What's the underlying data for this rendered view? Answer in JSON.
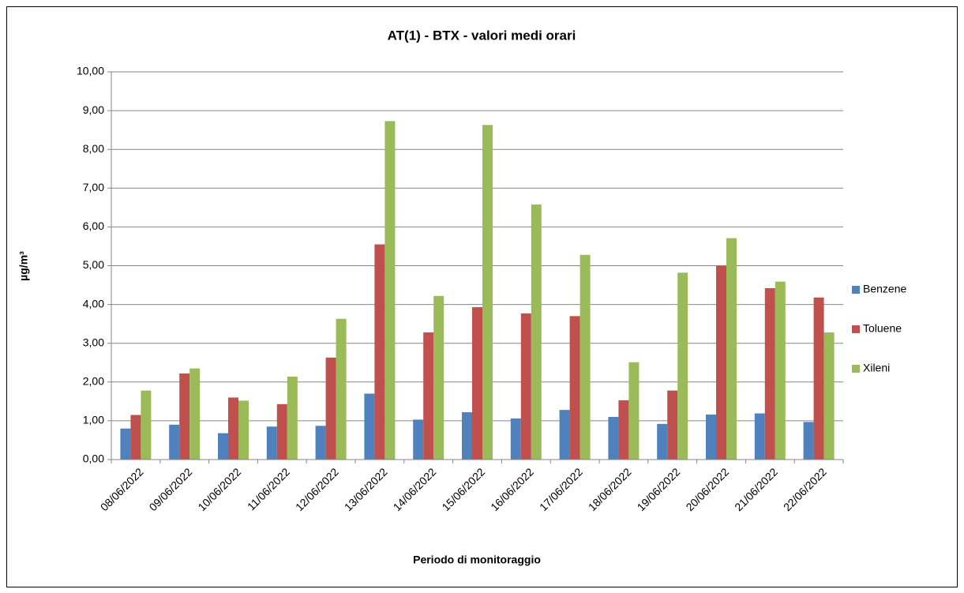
{
  "chart_data": {
    "type": "bar",
    "title": "AT(1) - BTX - valori medi orari",
    "x_label": "Periodo di monitoraggio",
    "y_label": "µg/m³",
    "categories": [
      "08/06/2022",
      "09/06/2022",
      "10/06/2022",
      "11/06/2022",
      "12/06/2022",
      "13/06/2022",
      "14/06/2022",
      "15/06/2022",
      "16/06/2022",
      "17/06/2022",
      "18/06/2022",
      "19/06/2022",
      "20/06/2022",
      "21/06/2022",
      "22/06/2022"
    ],
    "series": [
      {
        "name": "Benzene",
        "color": "#4f81bd",
        "values": [
          0.8,
          0.9,
          0.68,
          0.85,
          0.87,
          1.7,
          1.03,
          1.22,
          1.06,
          1.28,
          1.1,
          0.92,
          1.16,
          1.19,
          0.97
        ]
      },
      {
        "name": "Toluene",
        "color": "#c0504d",
        "values": [
          1.15,
          2.22,
          1.6,
          1.43,
          2.63,
          5.55,
          3.28,
          3.93,
          3.77,
          3.7,
          1.53,
          1.78,
          5.0,
          4.42,
          4.18
        ]
      },
      {
        "name": "Xileni",
        "color": "#9bbb59",
        "values": [
          1.78,
          2.35,
          1.52,
          2.14,
          3.63,
          8.73,
          4.22,
          8.63,
          6.58,
          5.28,
          2.51,
          4.82,
          5.71,
          4.59,
          3.28
        ]
      }
    ],
    "ylim": [
      0,
      10
    ],
    "yticks": [
      {
        "value": 0,
        "label": "0,00"
      },
      {
        "value": 1,
        "label": "1,00"
      },
      {
        "value": 2,
        "label": "2,00"
      },
      {
        "value": 3,
        "label": "3,00"
      },
      {
        "value": 4,
        "label": "4,00"
      },
      {
        "value": 5,
        "label": "5,00"
      },
      {
        "value": 6,
        "label": "6,00"
      },
      {
        "value": 7,
        "label": "7,00"
      },
      {
        "value": 8,
        "label": "8,00"
      },
      {
        "value": 9,
        "label": "9,00"
      },
      {
        "value": 10,
        "label": "10,00"
      }
    ],
    "grid": true,
    "legend": "right"
  }
}
